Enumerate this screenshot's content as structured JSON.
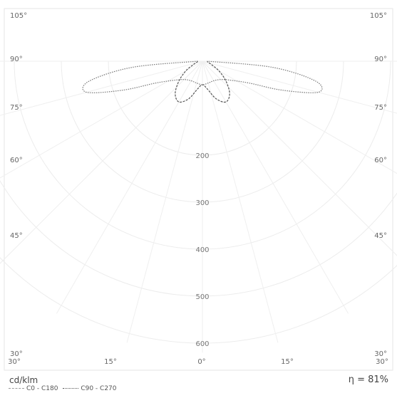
{
  "chart_data": {
    "type": "polar",
    "units_label": "cd/klm",
    "efficiency_label": "η = 81%",
    "angle_labels_left": [
      "105°",
      "90°",
      "75°",
      "60°",
      "45°",
      "30°"
    ],
    "angle_labels_right": [
      "105°",
      "90°",
      "75°",
      "60°",
      "45°",
      "30°"
    ],
    "bottom_angle_labels": [
      "30°",
      "15°",
      "0°",
      "15°",
      "30°"
    ],
    "radial_tick_labels": [
      "200",
      "300",
      "400",
      "500",
      "600"
    ],
    "radial_ticks": [
      200,
      300,
      400,
      500,
      600
    ],
    "series": [
      {
        "name": "C0 - C180",
        "color": "#555555",
        "points": [
          {
            "angle": -90,
            "value": 10
          },
          {
            "angle": -80,
            "value": 12
          },
          {
            "angle": -70,
            "value": 20
          },
          {
            "angle": -60,
            "value": 40
          },
          {
            "angle": -50,
            "value": 65
          },
          {
            "angle": -40,
            "value": 90
          },
          {
            "angle": -30,
            "value": 100
          },
          {
            "angle": -20,
            "value": 85
          },
          {
            "angle": -10,
            "value": 60
          },
          {
            "angle": 0,
            "value": 50
          },
          {
            "angle": 10,
            "value": 60
          },
          {
            "angle": 20,
            "value": 85
          },
          {
            "angle": 30,
            "value": 100
          },
          {
            "angle": 40,
            "value": 90
          },
          {
            "angle": 50,
            "value": 65
          },
          {
            "angle": 60,
            "value": 40
          },
          {
            "angle": 70,
            "value": 20
          },
          {
            "angle": 80,
            "value": 12
          },
          {
            "angle": 90,
            "value": 10
          }
        ]
      },
      {
        "name": "C90 - C270",
        "color": "#777777",
        "points": [
          {
            "angle": -90,
            "value": 10
          },
          {
            "angle": -85,
            "value": 150
          },
          {
            "angle": -80,
            "value": 245
          },
          {
            "angle": -75,
            "value": 255
          },
          {
            "angle": -70,
            "value": 180
          },
          {
            "angle": -65,
            "value": 110
          },
          {
            "angle": -55,
            "value": 70
          },
          {
            "angle": -45,
            "value": 55
          },
          {
            "angle": -30,
            "value": 48
          },
          {
            "angle": -15,
            "value": 48
          },
          {
            "angle": 0,
            "value": 50
          },
          {
            "angle": 15,
            "value": 48
          },
          {
            "angle": 30,
            "value": 48
          },
          {
            "angle": 45,
            "value": 55
          },
          {
            "angle": 55,
            "value": 70
          },
          {
            "angle": 65,
            "value": 110
          },
          {
            "angle": 70,
            "value": 180
          },
          {
            "angle": 75,
            "value": 255
          },
          {
            "angle": 80,
            "value": 245
          },
          {
            "angle": 85,
            "value": 150
          },
          {
            "angle": 90,
            "value": 10
          }
        ]
      }
    ]
  }
}
